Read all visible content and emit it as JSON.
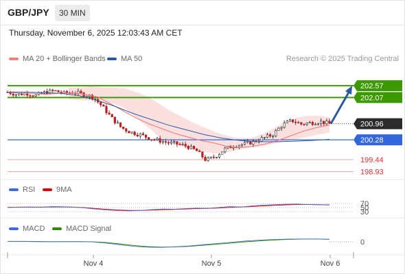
{
  "header": {
    "symbol": "GBP/JPY",
    "timeframe": "30 MIN"
  },
  "datetime": "Thursday, November 6, 2025 12:03:43 AM CET",
  "legend_main": [
    {
      "label": "MA 20 + Bollinger Bands",
      "color": "#f08080"
    },
    {
      "label": "MA 50",
      "color": "#2c5aa0"
    }
  ],
  "research": "Research © 2025 Trading Central",
  "legend_rsi": [
    {
      "label": "RSI",
      "color": "#4169e1"
    },
    {
      "label": "9MA",
      "color": "#e00000"
    }
  ],
  "legend_macd": [
    {
      "label": "MACD",
      "color": "#4169e1"
    },
    {
      "label": "MACD Signal",
      "color": "#2e8b00"
    }
  ],
  "colors": {
    "resistance": "#3c9a00",
    "support": "#3366dd",
    "target": "#e03030",
    "arrow": "#2c5aa0",
    "band": "#fadada",
    "candle_up": "#2e2e2e",
    "candle_down": "#b22222"
  },
  "chart_data": {
    "type": "candlestick",
    "y_range": [
      198.6,
      203.3
    ],
    "levels": [
      {
        "value": 202.57,
        "label": "202.57",
        "kind": "resistance"
      },
      {
        "value": 202.07,
        "label": "202.07",
        "kind": "resistance"
      },
      {
        "value": 200.96,
        "label": "200.96",
        "kind": "last"
      },
      {
        "value": 200.28,
        "label": "200.28",
        "kind": "pivot"
      },
      {
        "value": 199.44,
        "label": "199.44",
        "kind": "support"
      },
      {
        "value": 198.93,
        "label": "198.93",
        "kind": "support"
      }
    ],
    "x_ticks": [
      "Nov 4",
      "Nov 5",
      "Nov 6"
    ],
    "close_path": [
      202.3,
      202.2,
      202.25,
      202.15,
      202.3,
      202.35,
      202.25,
      202.3,
      202.2,
      202.1,
      201.7,
      201.2,
      200.8,
      200.6,
      200.5,
      200.35,
      200.25,
      200.15,
      200.1,
      200.0,
      199.8,
      199.4,
      199.6,
      199.9,
      200.05,
      200.1,
      200.2,
      200.35,
      200.5,
      200.9,
      201.1,
      200.95,
      201.0,
      201.05,
      200.96
    ],
    "ma20": [
      202.3,
      202.25,
      202.25,
      202.2,
      202.25,
      202.27,
      202.2,
      202.1,
      201.8,
      201.5,
      201.2,
      200.95,
      200.75,
      200.55,
      200.4,
      200.25,
      200.15,
      200.0,
      199.95,
      200.0,
      200.1,
      200.25,
      200.45,
      200.65,
      200.8,
      200.9
    ],
    "ma50": [
      202.3,
      202.3,
      202.28,
      202.25,
      202.15,
      201.95,
      201.7,
      201.4,
      201.15,
      200.9,
      200.7,
      200.5,
      200.35,
      200.25,
      200.2,
      200.2,
      200.22,
      200.25,
      200.3
    ],
    "bb_upper": [
      202.5,
      202.5,
      202.55,
      202.5,
      202.5,
      202.45,
      202.3,
      202.1,
      201.8,
      201.5,
      201.25,
      201.0,
      200.8,
      200.6,
      200.45,
      200.35,
      200.35,
      200.5,
      200.75,
      201.0,
      201.2,
      201.3,
      201.3,
      201.25
    ],
    "bb_lower": [
      202.0,
      201.95,
      201.95,
      201.85,
      201.8,
      201.6,
      201.2,
      200.8,
      200.4,
      200.15,
      200.0,
      199.85,
      199.75,
      199.7,
      199.75,
      199.85,
      199.95,
      200.0,
      200.1,
      200.2,
      200.3,
      200.4,
      200.5,
      200.6
    ],
    "rsi": {
      "ticks": [
        "70",
        "50",
        "30"
      ],
      "range": [
        0,
        100
      ],
      "values": [
        50,
        52,
        53,
        51,
        55,
        54,
        52,
        48,
        42,
        38,
        35,
        34,
        36,
        40,
        43,
        42,
        45,
        47,
        46,
        50,
        55,
        52,
        58,
        62,
        64,
        66,
        67,
        65,
        64,
        62
      ],
      "ma": [
        51,
        52,
        52,
        52,
        53,
        53,
        52,
        49,
        45,
        41,
        38,
        36,
        36,
        38,
        40,
        41,
        43,
        45,
        46,
        48,
        51,
        53,
        55,
        58,
        61,
        63,
        65,
        65,
        64,
        63
      ]
    },
    "macd": {
      "ticks": [
        "0"
      ],
      "range": [
        -1,
        1
      ],
      "values": [
        0.05,
        0.04,
        0.02,
        0.0,
        0.02,
        0.03,
        0.0,
        -0.15,
        -0.35,
        -0.55,
        -0.65,
        -0.68,
        -0.6,
        -0.5,
        -0.35,
        -0.2,
        -0.05,
        0.1,
        0.2,
        0.28,
        0.33,
        0.35,
        0.33,
        0.3
      ],
      "signal": [
        0.05,
        0.05,
        0.04,
        0.02,
        0.02,
        0.02,
        0.01,
        -0.08,
        -0.25,
        -0.45,
        -0.58,
        -0.65,
        -0.62,
        -0.55,
        -0.42,
        -0.28,
        -0.14,
        0.0,
        0.12,
        0.22,
        0.29,
        0.33,
        0.34,
        0.32
      ]
    }
  }
}
